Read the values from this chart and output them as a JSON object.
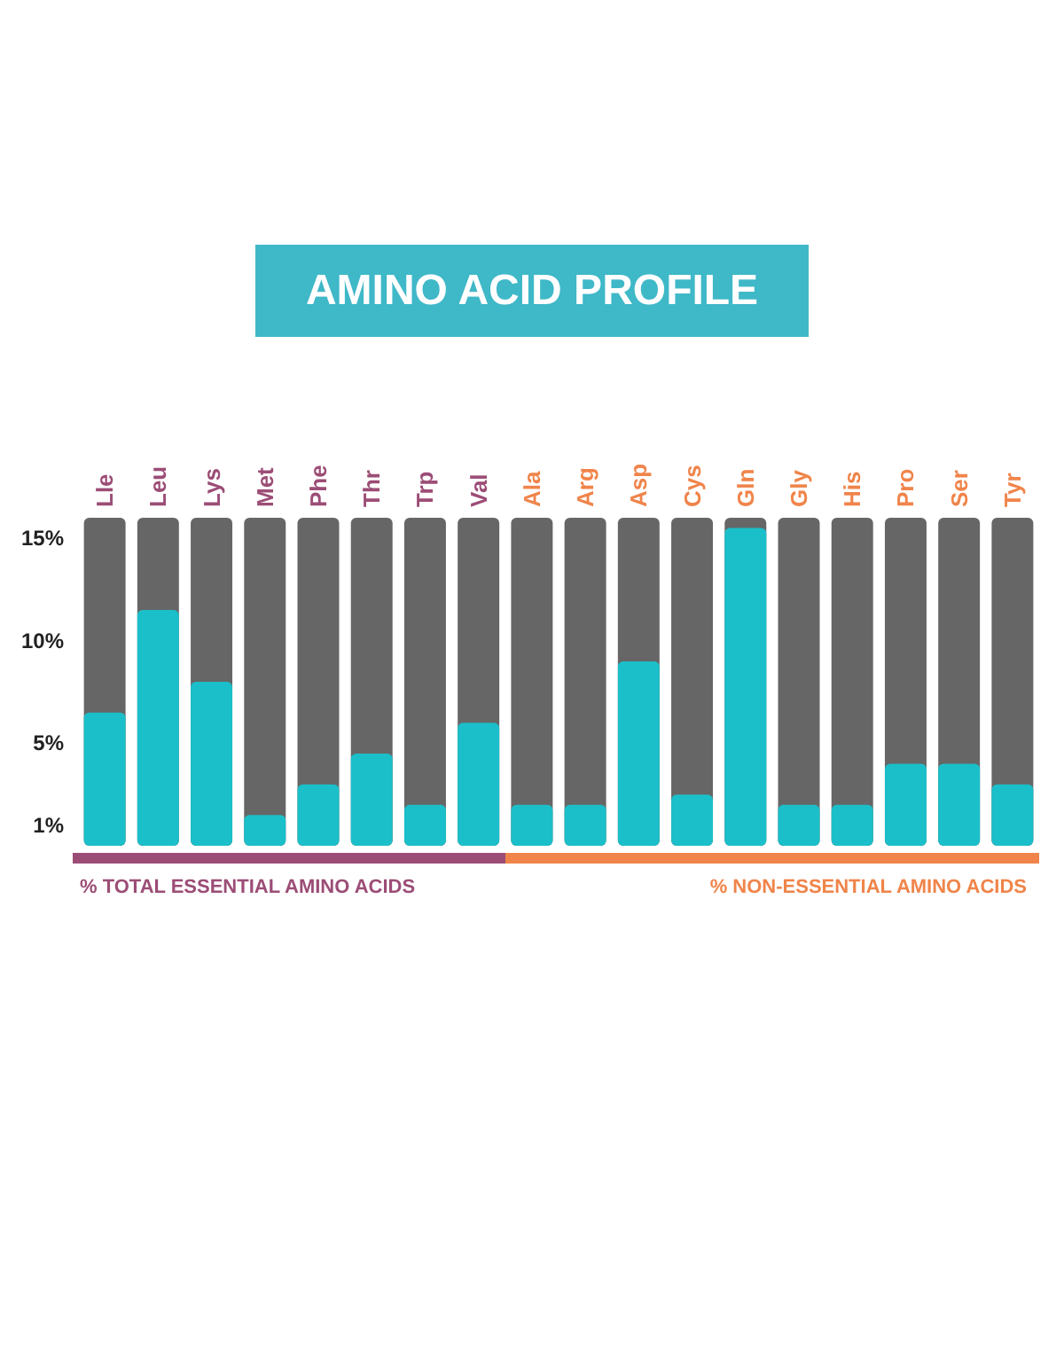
{
  "chart_data": {
    "type": "bar",
    "title": "AMINO ACID PROFILE",
    "categories": [
      "Lle",
      "Leu",
      "Lys",
      "Met",
      "Phe",
      "Thr",
      "Trp",
      "Val",
      "Ala",
      "Arg",
      "Asp",
      "Cys",
      "Gln",
      "Gly",
      "His",
      "Pro",
      "Ser",
      "Tyr"
    ],
    "values": [
      6.5,
      11.5,
      8,
      1.5,
      3,
      4.5,
      2,
      6,
      2,
      2,
      9,
      2.5,
      15.5,
      2,
      2,
      4,
      4,
      3
    ],
    "color": "#1bbfc9",
    "ylim": [
      0,
      16
    ],
    "yticks": [
      {
        "value": 1,
        "label": "1%"
      },
      {
        "value": 5,
        "label": "5%"
      },
      {
        "value": 10,
        "label": "10%"
      },
      {
        "value": 15,
        "label": "15%"
      }
    ],
    "annotations": [
      "% TOTAL ESSENTIAL AMINO ACIDS",
      "% NON-ESSENTIAL AMINO ACIDS"
    ],
    "grid": false
  }
}
